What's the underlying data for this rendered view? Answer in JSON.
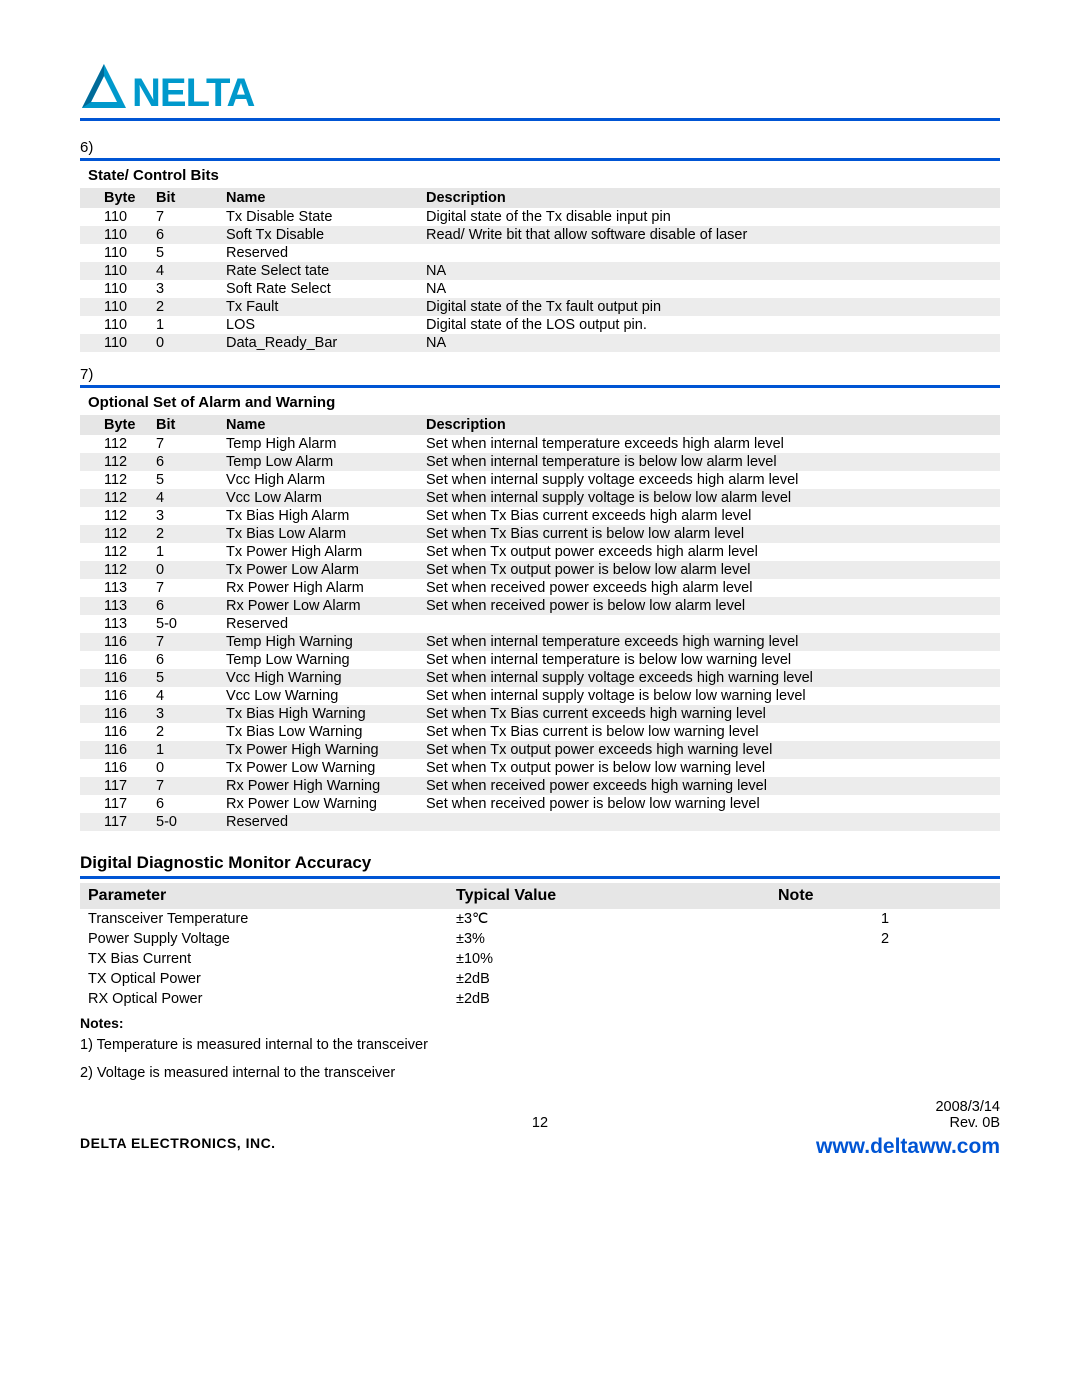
{
  "brand": {
    "name": "NELTA",
    "color": "#0099cc"
  },
  "section6": {
    "number": "6)",
    "title": "State/ Control Bits",
    "headers": [
      "Byte",
      "Bit",
      "Name",
      "Description"
    ],
    "rows": [
      {
        "byte": "110",
        "bit": "7",
        "name": "Tx Disable State",
        "desc": "Digital state of the Tx disable input pin"
      },
      {
        "byte": "110",
        "bit": "6",
        "name": "Soft Tx Disable",
        "desc": "Read/ Write bit that allow software disable of laser"
      },
      {
        "byte": "110",
        "bit": "5",
        "name": "Reserved",
        "desc": ""
      },
      {
        "byte": "110",
        "bit": "4",
        "name": "Rate Select tate",
        "desc": "NA"
      },
      {
        "byte": "110",
        "bit": "3",
        "name": "Soft Rate Select",
        "desc": "NA"
      },
      {
        "byte": "110",
        "bit": "2",
        "name": "Tx Fault",
        "desc": "Digital state of the Tx fault output pin"
      },
      {
        "byte": "110",
        "bit": "1",
        "name": "LOS",
        "desc": "Digital state of the LOS output pin."
      },
      {
        "byte": "110",
        "bit": "0",
        "name": "Data_Ready_Bar",
        "desc": "NA"
      }
    ]
  },
  "section7": {
    "number": "7)",
    "title": "Optional Set of Alarm and Warning",
    "headers": [
      "Byte",
      "Bit",
      "Name",
      "Description"
    ],
    "rows": [
      {
        "byte": "112",
        "bit": "7",
        "name": "Temp High Alarm",
        "desc": "Set when internal temperature exceeds high alarm level"
      },
      {
        "byte": "112",
        "bit": "6",
        "name": "Temp Low Alarm",
        "desc": "Set when internal temperature is below low alarm level"
      },
      {
        "byte": "112",
        "bit": "5",
        "name": "Vcc High Alarm",
        "desc": "Set when internal supply voltage exceeds high alarm level"
      },
      {
        "byte": "112",
        "bit": "4",
        "name": "Vcc Low Alarm",
        "desc": "Set when internal supply voltage is below low alarm level"
      },
      {
        "byte": "112",
        "bit": "3",
        "name": "Tx Bias High Alarm",
        "desc": "Set when Tx Bias current exceeds high alarm level"
      },
      {
        "byte": "112",
        "bit": "2",
        "name": "Tx Bias Low Alarm",
        "desc": "Set when Tx Bias current is below low alarm level"
      },
      {
        "byte": "112",
        "bit": "1",
        "name": "Tx Power High Alarm",
        "desc": "Set when Tx output power exceeds high alarm level"
      },
      {
        "byte": "112",
        "bit": "0",
        "name": "Tx Power Low Alarm",
        "desc": "Set when Tx output power is below low alarm level"
      },
      {
        "byte": "113",
        "bit": "7",
        "name": "Rx Power High Alarm",
        "desc": "Set when received power exceeds high alarm level"
      },
      {
        "byte": "113",
        "bit": "6",
        "name": "Rx Power Low Alarm",
        "desc": "Set when received power is below low alarm level"
      },
      {
        "byte": "113",
        "bit": "5-0",
        "name": "Reserved",
        "desc": ""
      },
      {
        "byte": "116",
        "bit": "7",
        "name": "Temp High Warning",
        "desc": "Set when internal temperature exceeds high warning level"
      },
      {
        "byte": "116",
        "bit": "6",
        "name": "Temp Low Warning",
        "desc": "Set when internal temperature is below low warning level"
      },
      {
        "byte": "116",
        "bit": "5",
        "name": "Vcc High Warning",
        "desc": "Set when internal supply voltage exceeds high warning level"
      },
      {
        "byte": "116",
        "bit": "4",
        "name": "Vcc Low Warning",
        "desc": "Set when internal supply voltage is below low warning level"
      },
      {
        "byte": "116",
        "bit": "3",
        "name": "Tx Bias High Warning",
        "desc": "Set when Tx Bias current exceeds high warning level"
      },
      {
        "byte": "116",
        "bit": "2",
        "name": "Tx Bias Low Warning",
        "desc": "Set when Tx Bias current is below low warning level"
      },
      {
        "byte": "116",
        "bit": "1",
        "name": "Tx Power High Warning",
        "desc": "Set when Tx output power exceeds high warning level"
      },
      {
        "byte": "116",
        "bit": "0",
        "name": "Tx Power Low Warning",
        "desc": "Set when Tx output power is below low warning level"
      },
      {
        "byte": "117",
        "bit": "7",
        "name": "Rx Power High Warning",
        "desc": "Set when received power exceeds high warning level"
      },
      {
        "byte": "117",
        "bit": "6",
        "name": "Rx Power Low Warning",
        "desc": "Set when received power is below low warning level"
      },
      {
        "byte": "117",
        "bit": "5-0",
        "name": "Reserved",
        "desc": ""
      }
    ]
  },
  "accuracy": {
    "title": "Digital Diagnostic Monitor Accuracy",
    "headers": [
      "Parameter",
      "Typical Value",
      "Note"
    ],
    "rows": [
      {
        "param": "Transceiver Temperature",
        "val": "±3℃",
        "note": "1"
      },
      {
        "param": "Power Supply Voltage",
        "val": "±3%",
        "note": "2"
      },
      {
        "param": "TX Bias Current",
        "val": "±10%",
        "note": ""
      },
      {
        "param": "TX Optical Power",
        "val": "±2dB",
        "note": ""
      },
      {
        "param": "RX Optical Power",
        "val": "±2dB",
        "note": ""
      }
    ],
    "notes_label": "Notes:",
    "notes": [
      "1) Temperature is measured internal to the transceiver",
      "2) Voltage is measured internal to the transceiver"
    ]
  },
  "footer": {
    "page": "12",
    "date": "2008/3/14",
    "rev": "Rev. 0B",
    "company": "DELTA ELECTRONICS, INC.",
    "url": "www.deltaww.com"
  }
}
